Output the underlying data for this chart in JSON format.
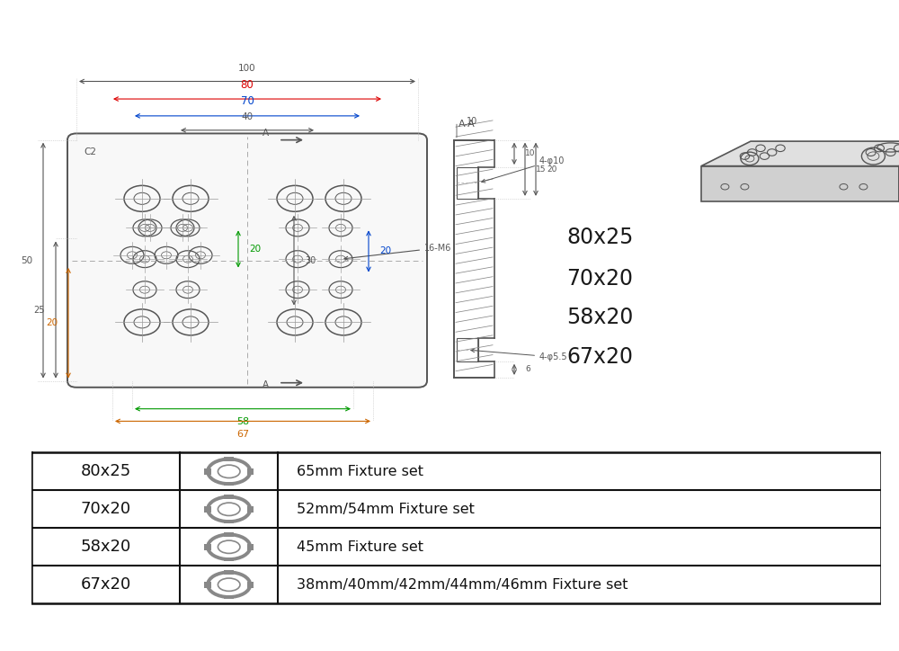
{
  "bg_color": "#ffffff",
  "lc": "#555555",
  "dim_color_red": "#dd0000",
  "dim_color_blue": "#0044cc",
  "dim_color_green": "#009900",
  "dim_color_orange": "#cc6600",
  "table_rows": [
    {
      "size": "80x25",
      "fixture": "65mm Fixture set"
    },
    {
      "size": "70x20",
      "fixture": "52mm/54mm Fixture set"
    },
    {
      "size": "58x20",
      "fixture": "45mm Fixture set"
    },
    {
      "size": "67x20",
      "fixture": "38mm/40mm/42mm/44mm/46mm Fixture set"
    }
  ],
  "sizes_text": [
    "80x25",
    "70x20",
    "58x20",
    "67x20"
  ]
}
